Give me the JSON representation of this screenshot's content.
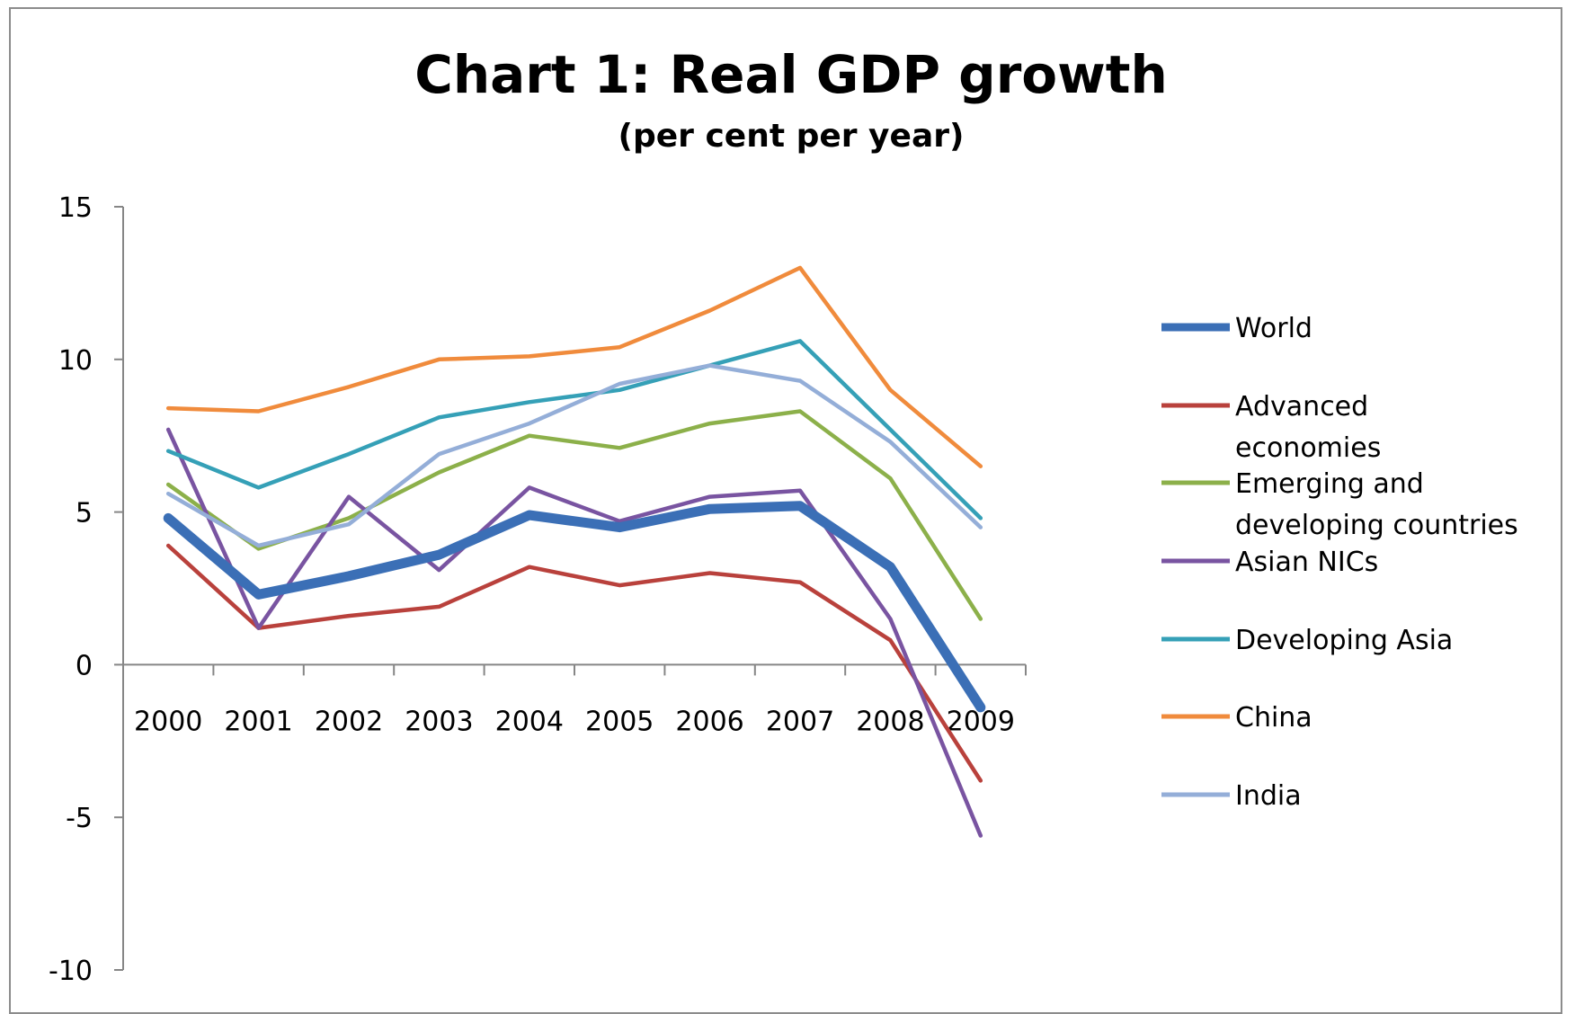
{
  "chart_data": {
    "type": "line",
    "title": "Chart 1: Real GDP growth",
    "subtitle": "(per cent per year)",
    "xlabel": "",
    "ylabel": "",
    "ylim": [
      -10,
      15
    ],
    "y_ticks": [
      15,
      10,
      5,
      0,
      -5,
      -10
    ],
    "y_tick_labels": [
      "15",
      "10",
      "5",
      "0",
      "-5",
      "-10"
    ],
    "categories": [
      "2000",
      "2001",
      "2002",
      "2003",
      "2004",
      "2005",
      "2006",
      "2007",
      "2008",
      "2009"
    ],
    "grid": false,
    "legend_position": "right",
    "series": [
      {
        "name": "World",
        "color": "#3b6fb6",
        "weight": "heavy",
        "values": [
          4.8,
          2.3,
          2.9,
          3.6,
          4.9,
          4.5,
          5.1,
          5.2,
          3.2,
          -1.4
        ]
      },
      {
        "name": "Advanced economies",
        "color": "#b9413c",
        "weight": "normal",
        "values": [
          3.9,
          1.2,
          1.6,
          1.9,
          3.2,
          2.6,
          3.0,
          2.7,
          0.8,
          -3.8
        ]
      },
      {
        "name": "Emerging and developing countries",
        "color": "#8cb04a",
        "weight": "normal",
        "values": [
          5.9,
          3.8,
          4.8,
          6.3,
          7.5,
          7.1,
          7.9,
          8.3,
          6.1,
          1.5
        ]
      },
      {
        "name": "Asian NICs",
        "color": "#7954a1",
        "weight": "normal",
        "values": [
          7.7,
          1.2,
          5.5,
          3.1,
          5.8,
          4.7,
          5.5,
          5.7,
          1.5,
          -5.6
        ]
      },
      {
        "name": "Developing Asia",
        "color": "#35a0b7",
        "weight": "normal",
        "values": [
          7.0,
          5.8,
          6.9,
          8.1,
          8.6,
          9.0,
          9.8,
          10.6,
          7.7,
          4.8
        ]
      },
      {
        "name": "China",
        "color": "#f08b3c",
        "weight": "normal",
        "values": [
          8.4,
          8.3,
          9.1,
          10.0,
          10.1,
          10.4,
          11.6,
          13.0,
          9.0,
          6.5
        ]
      },
      {
        "name": "India",
        "color": "#94aed8",
        "weight": "normal",
        "values": [
          5.6,
          3.9,
          4.6,
          6.9,
          7.9,
          9.2,
          9.8,
          9.3,
          7.3,
          4.5
        ]
      }
    ]
  }
}
